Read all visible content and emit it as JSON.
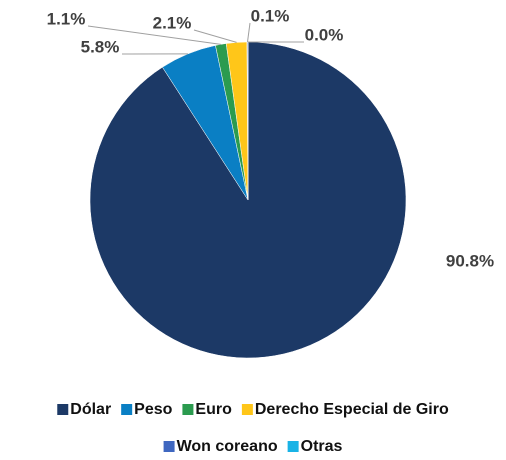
{
  "chart_data": {
    "type": "pie",
    "categories": [
      "Dólar",
      "Peso",
      "Euro",
      "Derecho Especial de Giro",
      "Won coreano",
      "Otras"
    ],
    "values": [
      90.8,
      5.8,
      1.1,
      2.1,
      0.1,
      0.0
    ],
    "value_labels": [
      "90.8%",
      "5.8%",
      "1.1%",
      "2.1%",
      "0.1%",
      "0.0%"
    ],
    "colors": [
      "#1c3966",
      "#0a7fc4",
      "#2b9b4f",
      "#ffc619",
      "#3f67c0",
      "#19b3e6"
    ],
    "legend": "bottom"
  }
}
